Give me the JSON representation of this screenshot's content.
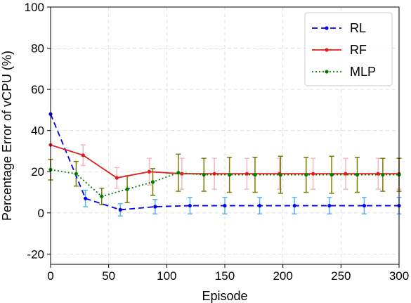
{
  "chart_data": {
    "type": "line",
    "title": "",
    "xlabel": "Episode",
    "ylabel": "Percentage Error of vCPU (%)",
    "xlim": [
      0,
      300
    ],
    "ylim": [
      -25,
      100
    ],
    "xticks": [
      0,
      50,
      100,
      150,
      200,
      250,
      300
    ],
    "yticks": [
      -20,
      0,
      20,
      40,
      60,
      80,
      100
    ],
    "grid": true,
    "legend_position": "top-right",
    "series": [
      {
        "name": "RL",
        "color": "#0000ee",
        "error_color": "#5ab4f0",
        "style": "dashed",
        "x": [
          0,
          30,
          60,
          90,
          120,
          150,
          180,
          210,
          240,
          270,
          300
        ],
        "y": [
          48,
          7,
          1.5,
          3,
          3.5,
          3.5,
          3.5,
          3.5,
          3.5,
          3.5,
          3.5
        ],
        "err": [
          null,
          4,
          3,
          3.5,
          4,
          4,
          4,
          4,
          4,
          4,
          4
        ]
      },
      {
        "name": "RF",
        "color": "#e41a1c",
        "error_color": "#f4b6bf",
        "style": "solid",
        "x": [
          0,
          28,
          57,
          85,
          113,
          141,
          169,
          197,
          226,
          254,
          282,
          300
        ],
        "y": [
          33,
          28,
          17,
          20,
          19,
          19,
          19,
          19,
          19,
          19,
          19,
          19
        ],
        "err": [
          null,
          5,
          5,
          6.5,
          7.5,
          7.5,
          7.5,
          7.5,
          7.5,
          7.5,
          7.5,
          7.5
        ]
      },
      {
        "name": "MLP",
        "color": "#008000",
        "error_color": "#7a7a00",
        "style": "dotted",
        "x": [
          0,
          22,
          44,
          66,
          88,
          110,
          132,
          154,
          176,
          198,
          220,
          242,
          264,
          286,
          300
        ],
        "y": [
          21,
          19,
          8,
          11.5,
          15,
          19.5,
          18.5,
          18.5,
          18.5,
          18.5,
          18.5,
          18.5,
          18.5,
          18.5,
          18.5
        ],
        "err": [
          5,
          6,
          4,
          6.5,
          6.5,
          9,
          8,
          8.5,
          8.5,
          9,
          8.5,
          9,
          8.5,
          8,
          8
        ]
      }
    ]
  }
}
